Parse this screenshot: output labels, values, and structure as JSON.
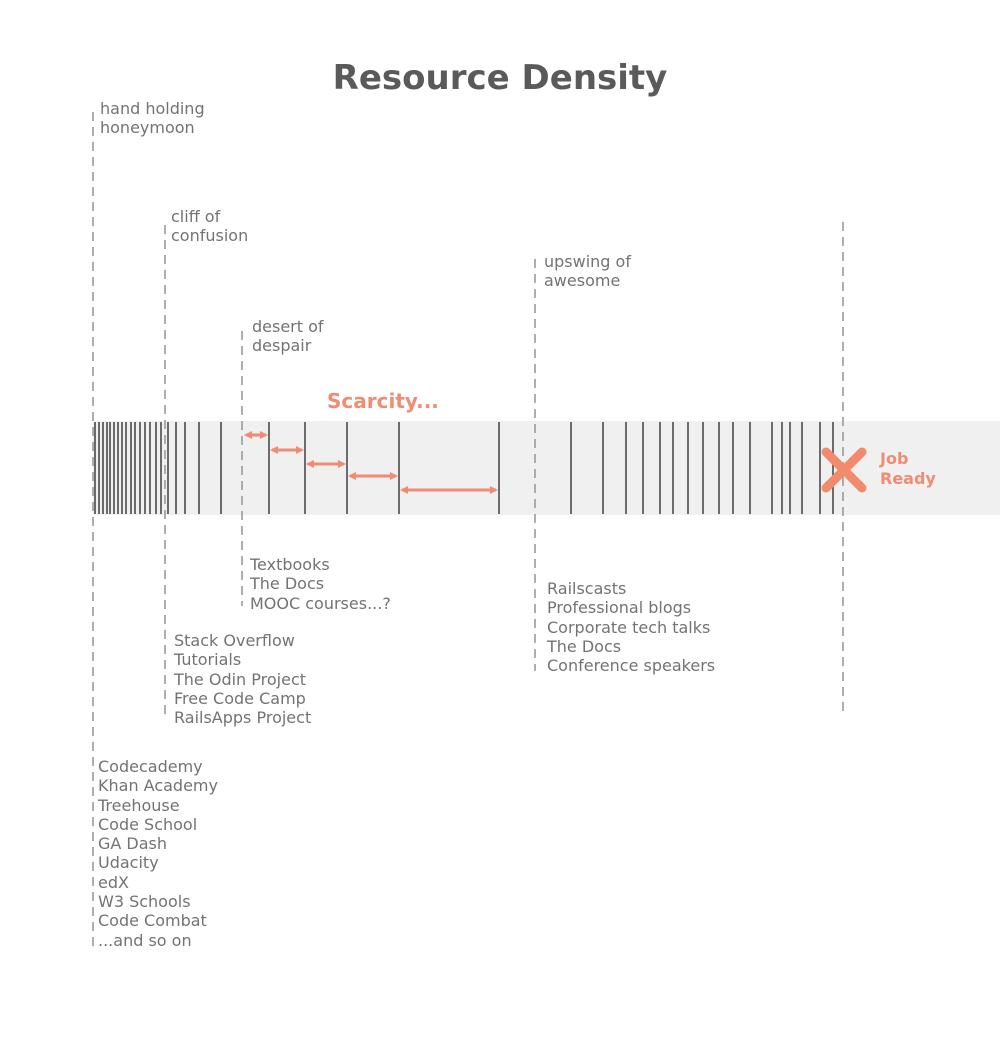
{
  "title": "Resource Density",
  "phases": {
    "hand_holding": [
      "hand holding",
      "honeymoon"
    ],
    "cliff": [
      "cliff of",
      "confusion"
    ],
    "desert": [
      "desert of",
      "despair"
    ],
    "upswing": [
      "upswing of",
      "awesome"
    ]
  },
  "scarcity_label": "Scarcity...",
  "job_ready": [
    "Job",
    "Ready"
  ],
  "resources": {
    "desert": [
      "Textbooks",
      "The Docs",
      "MOOC courses...?"
    ],
    "cliff": [
      "Stack Overflow",
      "Tutorials",
      "The Odin Project",
      "Free Code Camp",
      "RailsApps Project"
    ],
    "upswing": [
      "Railscasts",
      "Professional blogs",
      "Corporate tech talks",
      "The Docs",
      "Conference speakers"
    ],
    "hand_holding": [
      "Codecademy",
      "Khan Academy",
      "Treehouse",
      "Code School",
      "GA Dash",
      "Udacity",
      "edX",
      "W3 Schools",
      "Code Combat",
      "...and so on"
    ]
  },
  "colors": {
    "accent": "#ef8c72",
    "band": "#f0f0f0",
    "line": "#4a4a4a",
    "text": "#737373"
  },
  "icons": {
    "job_ready_marker": "x-mark-icon"
  }
}
